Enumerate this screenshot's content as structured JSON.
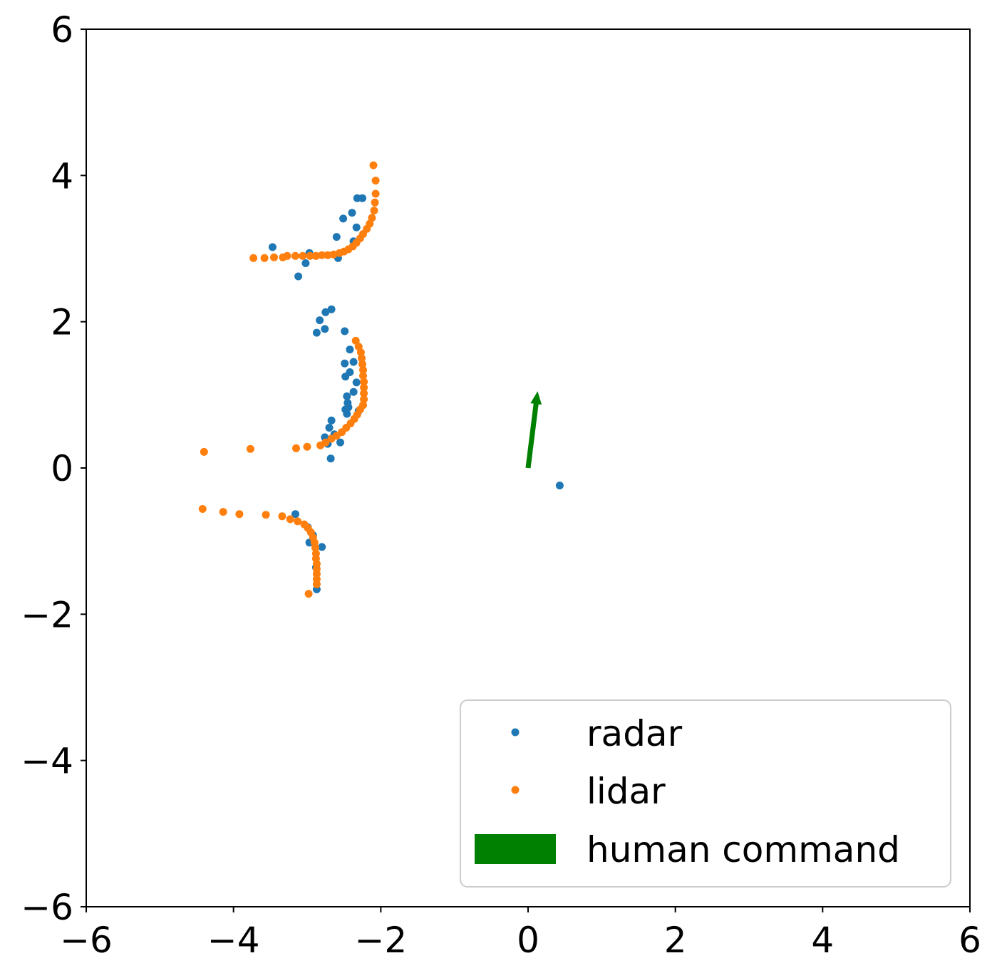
{
  "chart_data": {
    "type": "scatter",
    "xlim": [
      -6,
      6
    ],
    "ylim": [
      -6,
      6
    ],
    "xticks": [
      "−6",
      "−4",
      "−2",
      "0",
      "2",
      "4",
      "6"
    ],
    "yticks": [
      "6",
      "4",
      "2",
      "0",
      "−2",
      "−4",
      "−6"
    ],
    "grid": false,
    "legend": {
      "placement": "lower-right",
      "entries": [
        "radar",
        "lidar",
        "human command"
      ]
    },
    "series": [
      {
        "name": "radar",
        "color": "#1f77b4",
        "points": [
          [
            -3.47,
            3.02
          ],
          [
            -3.12,
            2.62
          ],
          [
            -3.02,
            2.8
          ],
          [
            -2.97,
            2.94
          ],
          [
            -2.58,
            2.87
          ],
          [
            -2.6,
            3.16
          ],
          [
            -2.51,
            3.41
          ],
          [
            -2.39,
            3.49
          ],
          [
            -2.33,
            3.29
          ],
          [
            -2.32,
            3.69
          ],
          [
            -2.25,
            3.69
          ],
          [
            -2.37,
            3.1
          ],
          [
            -2.67,
            2.17
          ],
          [
            -2.75,
            2.13
          ],
          [
            -2.83,
            2.02
          ],
          [
            -2.87,
            1.85
          ],
          [
            -2.76,
            1.9
          ],
          [
            -2.49,
            1.87
          ],
          [
            -2.42,
            1.62
          ],
          [
            -2.37,
            1.45
          ],
          [
            -2.49,
            1.43
          ],
          [
            -2.48,
            1.25
          ],
          [
            -2.42,
            1.31
          ],
          [
            -2.33,
            1.17
          ],
          [
            -2.37,
            1.04
          ],
          [
            -2.46,
            0.98
          ],
          [
            -2.45,
            0.89
          ],
          [
            -2.48,
            0.8
          ],
          [
            -2.46,
            0.74
          ],
          [
            -2.44,
            0.83
          ],
          [
            -2.3,
            0.78
          ],
          [
            -2.67,
            0.65
          ],
          [
            -2.7,
            0.55
          ],
          [
            -2.63,
            0.46
          ],
          [
            -2.76,
            0.42
          ],
          [
            -2.72,
            0.33
          ],
          [
            -2.55,
            0.35
          ],
          [
            -2.68,
            0.13
          ],
          [
            -3.16,
            -0.63
          ],
          [
            -2.99,
            -0.81
          ],
          [
            -2.92,
            -0.92
          ],
          [
            -2.97,
            -1.02
          ],
          [
            -2.8,
            -1.08
          ],
          [
            -2.88,
            -1.36
          ],
          [
            -2.87,
            -1.66
          ],
          [
            0.43,
            -0.24
          ]
        ]
      },
      {
        "name": "lidar",
        "color": "#ff7f0e",
        "points": [
          [
            -3.73,
            2.87
          ],
          [
            -3.58,
            2.87
          ],
          [
            -3.45,
            2.88
          ],
          [
            -3.33,
            2.88
          ],
          [
            -3.27,
            2.9
          ],
          [
            -3.16,
            2.9
          ],
          [
            -3.06,
            2.9
          ],
          [
            -2.96,
            2.9
          ],
          [
            -2.88,
            2.9
          ],
          [
            -2.8,
            2.91
          ],
          [
            -2.72,
            2.91
          ],
          [
            -2.64,
            2.92
          ],
          [
            -2.56,
            2.94
          ],
          [
            -2.5,
            2.96
          ],
          [
            -2.44,
            2.99
          ],
          [
            -2.38,
            3.03
          ],
          [
            -2.33,
            3.08
          ],
          [
            -2.28,
            3.14
          ],
          [
            -2.24,
            3.2
          ],
          [
            -2.19,
            3.27
          ],
          [
            -2.15,
            3.34
          ],
          [
            -2.12,
            3.42
          ],
          [
            -2.09,
            3.52
          ],
          [
            -2.08,
            3.63
          ],
          [
            -2.07,
            3.75
          ],
          [
            -2.07,
            3.93
          ],
          [
            -2.1,
            4.14
          ],
          [
            -2.34,
            1.74
          ],
          [
            -2.3,
            1.66
          ],
          [
            -2.27,
            1.58
          ],
          [
            -2.26,
            1.5
          ],
          [
            -2.25,
            1.42
          ],
          [
            -2.24,
            1.34
          ],
          [
            -2.24,
            1.26
          ],
          [
            -2.23,
            1.18
          ],
          [
            -2.23,
            1.1
          ],
          [
            -2.23,
            1.02
          ],
          [
            -2.23,
            0.94
          ],
          [
            -2.24,
            0.86
          ],
          [
            -2.28,
            0.8
          ],
          [
            -2.32,
            0.73
          ],
          [
            -2.36,
            0.67
          ],
          [
            -2.41,
            0.61
          ],
          [
            -2.47,
            0.55
          ],
          [
            -2.53,
            0.49
          ],
          [
            -2.6,
            0.44
          ],
          [
            -2.67,
            0.4
          ],
          [
            -2.75,
            0.35
          ],
          [
            -2.82,
            0.31
          ],
          [
            -3.0,
            0.29
          ],
          [
            -3.15,
            0.27
          ],
          [
            -3.77,
            0.26
          ],
          [
            -4.4,
            0.22
          ],
          [
            -4.42,
            -0.56
          ],
          [
            -4.14,
            -0.6
          ],
          [
            -3.92,
            -0.63
          ],
          [
            -3.56,
            -0.64
          ],
          [
            -3.34,
            -0.66
          ],
          [
            -3.23,
            -0.7
          ],
          [
            -3.13,
            -0.73
          ],
          [
            -3.04,
            -0.77
          ],
          [
            -2.99,
            -0.82
          ],
          [
            -2.95,
            -0.88
          ],
          [
            -2.92,
            -0.95
          ],
          [
            -2.9,
            -1.02
          ],
          [
            -2.89,
            -1.09
          ],
          [
            -2.88,
            -1.17
          ],
          [
            -2.88,
            -1.24
          ],
          [
            -2.87,
            -1.31
          ],
          [
            -2.87,
            -1.38
          ],
          [
            -2.87,
            -1.45
          ],
          [
            -2.87,
            -1.52
          ],
          [
            -2.87,
            -1.59
          ],
          [
            -2.98,
            -1.72
          ]
        ]
      }
    ],
    "arrows": [
      {
        "name": "human command",
        "color": "#008000",
        "x": 0.0,
        "y": 0.0,
        "dx": 0.13,
        "dy": 1.05
      }
    ]
  }
}
